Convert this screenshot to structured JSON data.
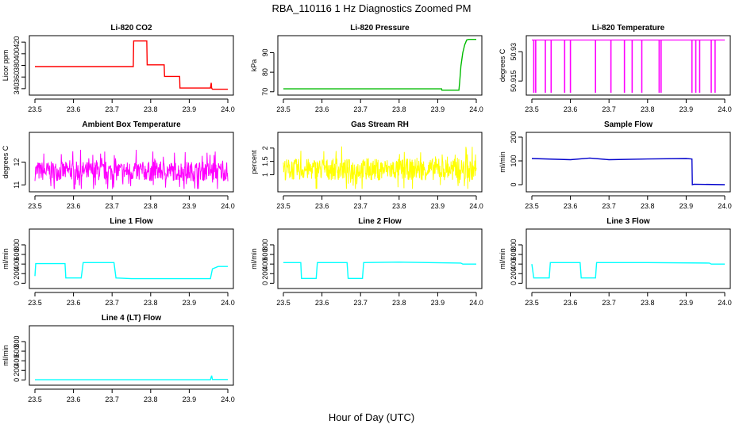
{
  "title": "RBA_110116  1 Hz Diagnostics Zoomed PM",
  "xlabel": "Hour of Day (UTC)",
  "chart_data": [
    {
      "type": "line",
      "title": "Li-820 CO2",
      "ylabel": "Licor ppm",
      "color": "#ff0000",
      "xlim": [
        23.5,
        24.0
      ],
      "xticks": [
        "23.5",
        "23.6",
        "23.7",
        "23.8",
        "23.9",
        "24.0"
      ],
      "ylim": [
        333,
        427
      ],
      "yticks": [
        340,
        360,
        380,
        400,
        420
      ],
      "x": [
        23.5,
        23.755,
        23.756,
        23.79,
        23.791,
        23.835,
        23.836,
        23.875,
        23.876,
        23.955,
        23.957,
        23.958,
        23.96,
        24.0
      ],
      "y": [
        378,
        378,
        422,
        422,
        381,
        381,
        361,
        361,
        341,
        341,
        350,
        341,
        339,
        339
      ]
    },
    {
      "type": "line",
      "title": "Li-820 Pressure",
      "ylabel": "kPa",
      "color": "#00bb00",
      "xlim": [
        23.5,
        24.0
      ],
      "xticks": [
        "23.5",
        "23.6",
        "23.7",
        "23.8",
        "23.9",
        "24.0"
      ],
      "ylim": [
        69.5,
        97.5
      ],
      "yticks": [
        70,
        80,
        90
      ],
      "x": [
        23.5,
        23.91,
        23.911,
        23.955,
        23.957,
        23.96,
        23.965,
        23.97,
        23.975,
        23.98,
        24.0
      ],
      "y": [
        71.5,
        71.5,
        70.8,
        70.8,
        75,
        83,
        90,
        94,
        96.5,
        96.8,
        96.8
      ]
    },
    {
      "type": "line",
      "title": "Li-820 Temperature",
      "ylabel": "degrees C",
      "color": "#ff00ff",
      "xlim": [
        23.5,
        24.0
      ],
      "xticks": [
        "23.5",
        "23.6",
        "23.7",
        "23.8",
        "23.9",
        "24.0"
      ],
      "ylim": [
        50.909,
        50.937
      ],
      "yticks": [
        50.915,
        50.93
      ],
      "baseline": 50.936,
      "drop_to": 50.909,
      "drops": [
        23.505,
        23.51,
        23.535,
        23.55,
        23.585,
        23.6,
        23.665,
        23.705,
        23.74,
        23.76,
        23.785,
        23.83,
        23.835,
        23.915,
        23.925,
        23.935,
        23.965,
        23.975
      ]
    },
    {
      "type": "line",
      "title": "Ambient Box Temperature",
      "ylabel": "degrees C",
      "color": "#ff00ff",
      "xlim": [
        23.5,
        24.0
      ],
      "xticks": [
        "23.5",
        "23.6",
        "23.7",
        "23.8",
        "23.9",
        "24.0"
      ],
      "ylim": [
        10.8,
        13.2
      ],
      "yticks": [
        11.0,
        12.0
      ],
      "center": 11.6,
      "amplitude": 0.95
    },
    {
      "type": "line",
      "title": "Gas Stream RH",
      "ylabel": "percent",
      "color": "#ffff00",
      "xlim": [
        23.5,
        24.0
      ],
      "xticks": [
        "23.5",
        "23.6",
        "23.7",
        "23.8",
        "23.9",
        "24.0"
      ],
      "ylim": [
        0.45,
        2.5
      ],
      "yticks": [
        1.0,
        1.5,
        2.0
      ],
      "center": 1.2,
      "amplitude": 0.9
    },
    {
      "type": "line",
      "title": "Sample Flow",
      "ylabel": "ml/min",
      "color": "#0000cc",
      "xlim": [
        23.5,
        24.0
      ],
      "xticks": [
        "23.5",
        "23.6",
        "23.7",
        "23.8",
        "23.9",
        "24.0"
      ],
      "ylim": [
        -20,
        210
      ],
      "yticks": [
        0,
        100,
        200
      ],
      "x": [
        23.5,
        23.6,
        23.65,
        23.7,
        23.8,
        23.9,
        23.915,
        23.916,
        23.92,
        24.0
      ],
      "y": [
        110,
        105,
        112,
        105,
        108,
        110,
        108,
        0,
        2,
        0
      ]
    },
    {
      "type": "line",
      "title": "Line 1 Flow",
      "ylabel": "ml/min",
      "color": "#00ffff",
      "xlim": [
        23.5,
        24.0
      ],
      "xticks": [
        "23.5",
        "23.6",
        "23.7",
        "23.8",
        "23.9",
        "24.0"
      ],
      "ylim": [
        -60,
        1080
      ],
      "yticks": [
        0,
        200,
        400,
        600,
        800
      ],
      "x": [
        23.5,
        23.502,
        23.578,
        23.58,
        23.62,
        23.625,
        23.705,
        23.71,
        23.75,
        23.955,
        23.96,
        23.975,
        24.0
      ],
      "y": [
        150,
        410,
        410,
        110,
        110,
        430,
        430,
        110,
        95,
        95,
        300,
        350,
        350
      ]
    },
    {
      "type": "line",
      "title": "Line 2 Flow",
      "ylabel": "ml/min",
      "color": "#00ffff",
      "xlim": [
        23.5,
        24.0
      ],
      "xticks": [
        "23.5",
        "23.6",
        "23.7",
        "23.8",
        "23.9",
        "24.0"
      ],
      "ylim": [
        -60,
        1080
      ],
      "yticks": [
        0,
        200,
        400,
        600,
        800
      ],
      "x": [
        23.5,
        23.545,
        23.547,
        23.585,
        23.588,
        23.665,
        23.668,
        23.705,
        23.708,
        23.8,
        23.96,
        23.965,
        24.0
      ],
      "y": [
        430,
        430,
        100,
        100,
        430,
        430,
        100,
        100,
        430,
        440,
        420,
        400,
        400
      ]
    },
    {
      "type": "line",
      "title": "Line 3 Flow",
      "ylabel": "ml/min",
      "color": "#00ffff",
      "xlim": [
        23.5,
        24.0
      ],
      "xticks": [
        "23.5",
        "23.6",
        "23.7",
        "23.8",
        "23.9",
        "24.0"
      ],
      "ylim": [
        -60,
        1080
      ],
      "yticks": [
        0,
        200,
        400,
        600,
        800
      ],
      "x": [
        23.5,
        23.505,
        23.545,
        23.548,
        23.625,
        23.628,
        23.665,
        23.668,
        23.8,
        23.96,
        23.965,
        24.0
      ],
      "y": [
        400,
        110,
        110,
        430,
        430,
        110,
        110,
        430,
        430,
        420,
        400,
        400
      ]
    },
    {
      "type": "line",
      "title": "Line 4 (LT) Flow",
      "ylabel": "ml/min",
      "color": "#00ffff",
      "xlim": [
        23.5,
        24.0
      ],
      "xticks": [
        "23.5",
        "23.6",
        "23.7",
        "23.8",
        "23.9",
        "24.0"
      ],
      "ylim": [
        -60,
        1080
      ],
      "yticks": [
        0,
        200,
        400,
        600,
        800
      ],
      "x": [
        23.5,
        23.955,
        23.958,
        23.96,
        24.0
      ],
      "y": [
        5,
        5,
        90,
        10,
        10
      ]
    }
  ]
}
